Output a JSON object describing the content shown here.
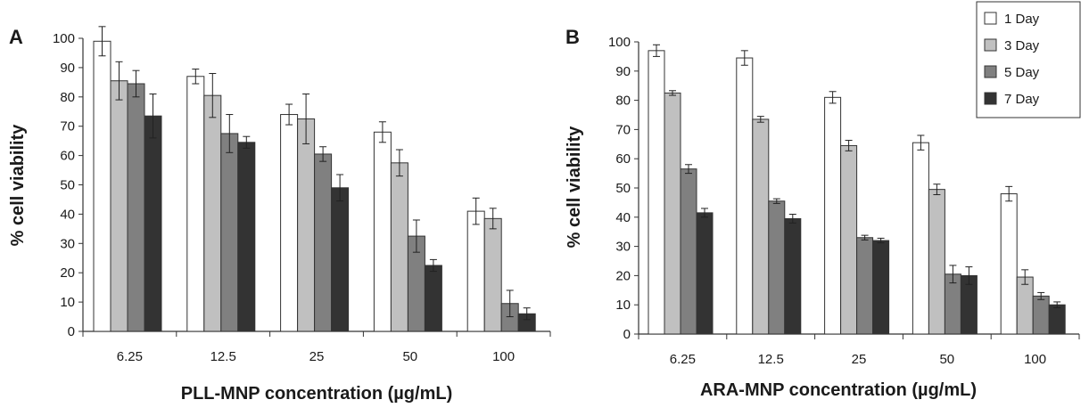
{
  "legend": {
    "entries": [
      {
        "label": "1 Day",
        "color": "#ffffff"
      },
      {
        "label": "3 Day",
        "color": "#c0c0c0"
      },
      {
        "label": "5 Day",
        "color": "#808080"
      },
      {
        "label": "7 Day",
        "color": "#333333"
      }
    ],
    "placement": "top-right"
  },
  "chart_data": [
    {
      "type": "bar",
      "panel_label": "A",
      "xlabel": "PLL-MNP concentration (µg/mL)",
      "ylabel": "% cell viability",
      "ylim": [
        0,
        100
      ],
      "yticks": [
        0,
        10,
        20,
        30,
        40,
        50,
        60,
        70,
        80,
        90,
        100
      ],
      "categories": [
        "6.25",
        "12.5",
        "25",
        "50",
        "100"
      ],
      "grid": false,
      "series": [
        {
          "name": "1 Day",
          "color": "#ffffff",
          "values": [
            99,
            87,
            74,
            68,
            41
          ],
          "errors": [
            5,
            2.5,
            3.5,
            3.5,
            4.5
          ]
        },
        {
          "name": "3 Day",
          "color": "#c0c0c0",
          "values": [
            85.5,
            80.5,
            72.5,
            57.5,
            38.5
          ],
          "errors": [
            6.5,
            7.5,
            8.5,
            4.5,
            3.5
          ]
        },
        {
          "name": "5 Day",
          "color": "#808080",
          "values": [
            84.5,
            67.5,
            60.5,
            32.5,
            9.5
          ],
          "errors": [
            4.5,
            6.5,
            2.5,
            5.5,
            4.5
          ]
        },
        {
          "name": "7 Day",
          "color": "#333333",
          "values": [
            73.5,
            64.5,
            49,
            22.5,
            6
          ],
          "errors": [
            7.5,
            2,
            4.5,
            2,
            2
          ]
        }
      ]
    },
    {
      "type": "bar",
      "panel_label": "B",
      "xlabel": "ARA-MNP concentration (µg/mL)",
      "ylabel": "% cell viability",
      "ylim": [
        0,
        100
      ],
      "yticks": [
        0,
        10,
        20,
        30,
        40,
        50,
        60,
        70,
        80,
        90,
        100
      ],
      "categories": [
        "6.25",
        "12.5",
        "25",
        "50",
        "100"
      ],
      "grid": false,
      "series": [
        {
          "name": "1 Day",
          "color": "#ffffff",
          "values": [
            97,
            94.5,
            81,
            65.5,
            48
          ],
          "errors": [
            2,
            2.5,
            2,
            2.5,
            2.5
          ]
        },
        {
          "name": "3 Day",
          "color": "#c0c0c0",
          "values": [
            82.5,
            73.5,
            64.5,
            49.5,
            19.5
          ],
          "errors": [
            0.8,
            1,
            1.8,
            1.8,
            2.5
          ]
        },
        {
          "name": "5 Day",
          "color": "#808080",
          "values": [
            56.5,
            45.5,
            33,
            20.5,
            13
          ],
          "errors": [
            1.5,
            0.8,
            0.8,
            3,
            1.2
          ]
        },
        {
          "name": "7 Day",
          "color": "#333333",
          "values": [
            41.5,
            39.5,
            32,
            20,
            10
          ],
          "errors": [
            1.5,
            1.5,
            0.8,
            3,
            1
          ]
        }
      ]
    }
  ]
}
